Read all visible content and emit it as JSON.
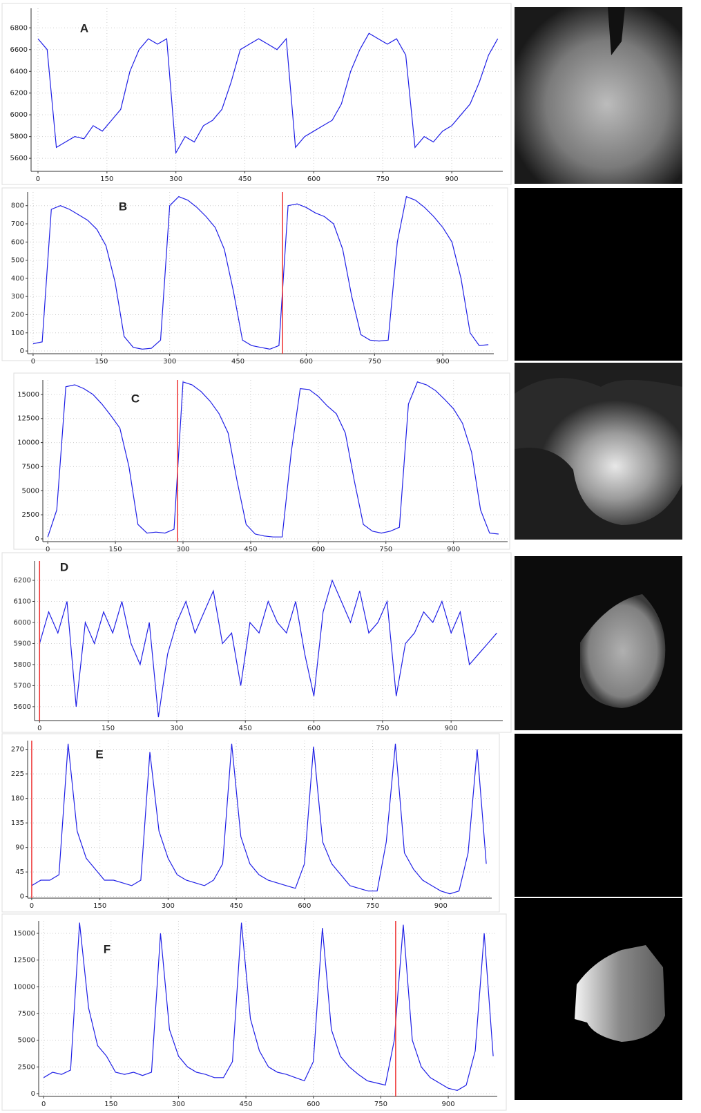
{
  "chart_data": [
    {
      "type": "line",
      "title": "A",
      "color": "#1f1fe6",
      "grid": true,
      "x": [
        0,
        20,
        40,
        60,
        80,
        100,
        120,
        140,
        160,
        180,
        200,
        220,
        240,
        260,
        280,
        300,
        320,
        340,
        360,
        380,
        400,
        420,
        440,
        460,
        480,
        500,
        520,
        540,
        560,
        580,
        600,
        620,
        640,
        660,
        680,
        700,
        720,
        740,
        760,
        780,
        800,
        820,
        840,
        860,
        880,
        900,
        920,
        940,
        960,
        980,
        1000
      ],
      "values": [
        6700,
        6600,
        5700,
        5750,
        5800,
        5780,
        5900,
        5850,
        5950,
        6050,
        6400,
        6600,
        6700,
        6650,
        6700,
        5650,
        5800,
        5750,
        5900,
        5950,
        6050,
        6300,
        6600,
        6650,
        6700,
        6650,
        6600,
        6700,
        5700,
        5800,
        5850,
        5900,
        5950,
        6100,
        6400,
        6600,
        6750,
        6700,
        6650,
        6700,
        6550,
        5700,
        5800,
        5750,
        5850,
        5900,
        6000,
        6100,
        6300,
        6550,
        6700
      ],
      "xlim": [
        -15,
        1011
      ],
      "ylim": [
        5480,
        6980
      ],
      "xticks": [
        0,
        150,
        300,
        450,
        600,
        750,
        900
      ],
      "yticks": [
        5600,
        5800,
        6000,
        6200,
        6400,
        6600,
        6800
      ]
    },
    {
      "type": "line",
      "title": "B",
      "color": "#1f1fe6",
      "grid": true,
      "marker_x": 548,
      "x": [
        0,
        20,
        40,
        60,
        80,
        100,
        120,
        140,
        160,
        180,
        200,
        220,
        240,
        260,
        280,
        300,
        320,
        340,
        360,
        380,
        400,
        420,
        440,
        460,
        480,
        500,
        520,
        540,
        560,
        580,
        600,
        620,
        640,
        660,
        680,
        700,
        720,
        740,
        760,
        780,
        800,
        820,
        840,
        860,
        880,
        900,
        920,
        940,
        960,
        980,
        1000
      ],
      "values": [
        40,
        50,
        780,
        800,
        780,
        750,
        720,
        670,
        580,
        380,
        80,
        20,
        10,
        15,
        60,
        800,
        850,
        830,
        790,
        740,
        680,
        560,
        330,
        60,
        30,
        20,
        10,
        30,
        800,
        810,
        790,
        760,
        740,
        700,
        560,
        300,
        90,
        60,
        55,
        60,
        600,
        850,
        830,
        790,
        740,
        680,
        600,
        400,
        100,
        30,
        35
      ],
      "xlim": [
        -12,
        1012
      ],
      "ylim": [
        -15,
        875
      ],
      "xticks": [
        0,
        150,
        300,
        450,
        600,
        750,
        900
      ],
      "yticks": [
        0,
        100,
        200,
        300,
        400,
        500,
        600,
        700,
        800
      ]
    },
    {
      "type": "line",
      "title": "C",
      "color": "#1f1fe6",
      "grid": true,
      "marker_x": 288,
      "x": [
        0,
        20,
        40,
        60,
        80,
        100,
        120,
        140,
        160,
        180,
        200,
        220,
        240,
        260,
        280,
        300,
        320,
        340,
        360,
        380,
        400,
        420,
        440,
        460,
        480,
        500,
        520,
        540,
        560,
        580,
        600,
        620,
        640,
        660,
        680,
        700,
        720,
        740,
        760,
        780,
        800,
        820,
        840,
        860,
        880,
        900,
        920,
        940,
        960,
        980,
        1000
      ],
      "values": [
        200,
        3000,
        15800,
        16000,
        15600,
        15000,
        14000,
        12800,
        11500,
        7500,
        1500,
        600,
        700,
        600,
        1000,
        16300,
        16000,
        15300,
        14300,
        13000,
        11000,
        6000,
        1500,
        500,
        300,
        200,
        200,
        9000,
        15600,
        15500,
        14800,
        13800,
        13000,
        11000,
        6000,
        1500,
        800,
        600,
        800,
        1200,
        14000,
        16300,
        16000,
        15400,
        14500,
        13500,
        12000,
        9000,
        3000,
        600,
        500
      ],
      "xlim": [
        -11,
        1020
      ],
      "ylim": [
        -290,
        16500
      ],
      "xticks": [
        0,
        150,
        300,
        450,
        600,
        750,
        900
      ],
      "yticks": [
        0,
        2500,
        5000,
        7500,
        10000,
        12500,
        15000
      ]
    },
    {
      "type": "line",
      "title": "D",
      "color": "#1f1fe6",
      "grid": true,
      "marker_x": 0,
      "x": [
        0,
        20,
        40,
        60,
        80,
        100,
        120,
        140,
        160,
        180,
        200,
        220,
        240,
        260,
        280,
        300,
        320,
        340,
        360,
        380,
        400,
        420,
        440,
        460,
        480,
        500,
        520,
        540,
        560,
        580,
        600,
        620,
        640,
        660,
        680,
        700,
        720,
        740,
        760,
        780,
        800,
        820,
        840,
        860,
        880,
        900,
        920,
        940,
        960,
        980,
        1000
      ],
      "values": [
        5900,
        6050,
        5950,
        6100,
        5600,
        6000,
        5900,
        6050,
        5950,
        6100,
        5900,
        5800,
        6000,
        5550,
        5850,
        6000,
        6100,
        5950,
        6050,
        6150,
        5900,
        5950,
        5700,
        6000,
        5950,
        6100,
        6000,
        5950,
        6100,
        5850,
        5650,
        6050,
        6200,
        6100,
        6000,
        6150,
        5950,
        6000,
        6100,
        5650,
        5900,
        5950,
        6050,
        6000,
        6100,
        5950,
        6050,
        5800,
        5850,
        5900,
        5950
      ],
      "xlim": [
        -11,
        1013
      ],
      "ylim": [
        5534,
        6292
      ],
      "xticks": [
        0,
        150,
        300,
        450,
        600,
        750,
        900
      ],
      "yticks": [
        5600,
        5700,
        5800,
        5900,
        6000,
        6100,
        6200
      ]
    },
    {
      "type": "line",
      "title": "E",
      "color": "#1f1fe6",
      "grid": true,
      "marker_x": 0,
      "x": [
        0,
        20,
        40,
        60,
        80,
        100,
        120,
        140,
        160,
        180,
        200,
        220,
        240,
        260,
        280,
        300,
        320,
        340,
        360,
        380,
        400,
        420,
        440,
        460,
        480,
        500,
        520,
        540,
        560,
        580,
        600,
        620,
        640,
        660,
        680,
        700,
        720,
        740,
        760,
        780,
        800,
        820,
        840,
        860,
        880,
        900,
        920,
        940,
        960,
        980,
        1000
      ],
      "values": [
        20,
        30,
        30,
        40,
        280,
        120,
        70,
        50,
        30,
        30,
        25,
        20,
        30,
        265,
        120,
        70,
        40,
        30,
        25,
        20,
        30,
        60,
        280,
        110,
        60,
        40,
        30,
        25,
        20,
        15,
        60,
        275,
        100,
        60,
        40,
        20,
        15,
        10,
        10,
        100,
        280,
        80,
        50,
        30,
        20,
        10,
        5,
        10,
        80,
        270,
        60
      ],
      "xlim": [
        -9,
        1012
      ],
      "ylim": [
        -3,
        286
      ],
      "xticks": [
        0,
        150,
        300,
        450,
        600,
        750,
        900
      ],
      "yticks": [
        0,
        45,
        90,
        135,
        180,
        225,
        270
      ]
    },
    {
      "type": "line",
      "title": "F",
      "color": "#1f1fe6",
      "grid": true,
      "marker_x": 783,
      "x": [
        0,
        20,
        40,
        60,
        80,
        100,
        120,
        140,
        160,
        180,
        200,
        220,
        240,
        260,
        280,
        300,
        320,
        340,
        360,
        380,
        400,
        420,
        440,
        460,
        480,
        500,
        520,
        540,
        560,
        580,
        600,
        620,
        640,
        660,
        680,
        700,
        720,
        740,
        760,
        780,
        800,
        820,
        840,
        860,
        880,
        900,
        920,
        940,
        960,
        980,
        1000
      ],
      "values": [
        1500,
        2000,
        1800,
        2200,
        16000,
        8000,
        4500,
        3500,
        2000,
        1800,
        2000,
        1700,
        2000,
        15000,
        6000,
        3500,
        2500,
        2000,
        1800,
        1500,
        1500,
        3000,
        16000,
        7000,
        4000,
        2500,
        2000,
        1800,
        1500,
        1200,
        3000,
        15500,
        6000,
        3500,
        2500,
        1800,
        1200,
        1000,
        800,
        5000,
        15800,
        5000,
        2500,
        1500,
        1000,
        500,
        300,
        800,
        4000,
        15000,
        3500
      ],
      "xlim": [
        -11,
        1009
      ],
      "ylim": [
        -260,
        16160
      ],
      "xticks": [
        0,
        150,
        300,
        450,
        600,
        750,
        900
      ],
      "yticks": [
        0,
        2500,
        5000,
        7500,
        10000,
        12500,
        15000
      ]
    }
  ]
}
